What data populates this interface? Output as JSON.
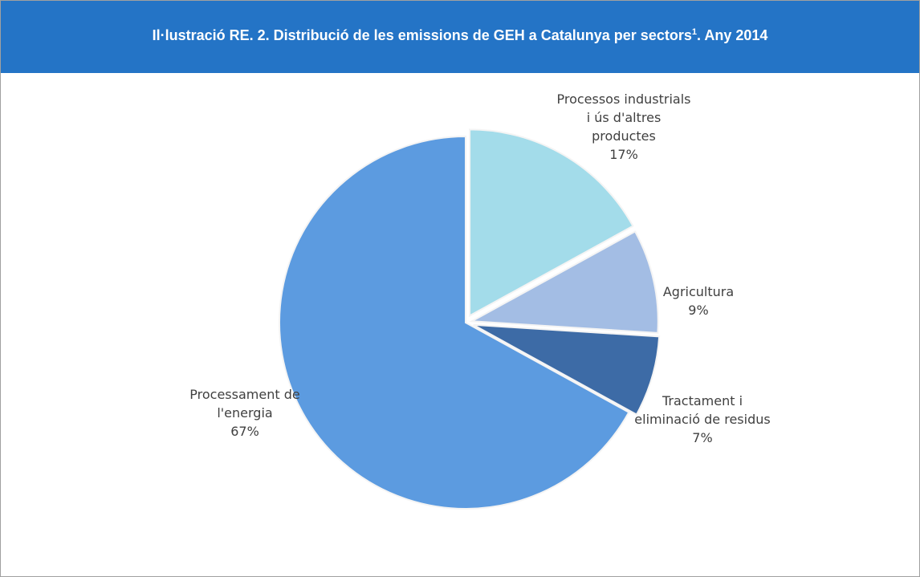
{
  "chart_data": {
    "type": "pie",
    "title": [
      "Il·lustració RE. 2. Distribució de les emissions de GEH a Catalunya per sectors",
      "1",
      ". Any 2014"
    ],
    "categories": [
      "Processos industrials i ús d'altres productes",
      "Agricultura",
      "Tractament i eliminació de residus",
      "Processament de l'energia"
    ],
    "values": [
      17,
      9,
      7,
      67
    ],
    "value_labels": [
      "17%",
      "9%",
      "7%",
      "67%"
    ],
    "colors": [
      "#a3dcea",
      "#a3bde4",
      "#3d6ba6",
      "#5c9be0"
    ]
  }
}
